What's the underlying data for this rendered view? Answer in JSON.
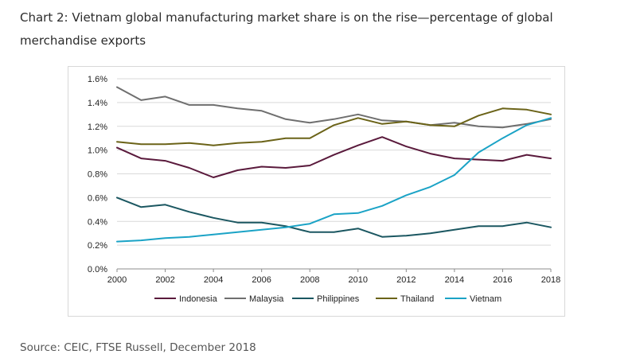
{
  "title": "Chart 2: Vietnam global manufacturing market share is on the rise—percentage of global merchandise exports",
  "source": "Source: CEIC, FTSE Russell, December 2018",
  "chart_data": {
    "type": "line",
    "title": "Chart 2: Vietnam global manufacturing market share is on the rise—percentage of global merchandise exports",
    "xlabel": "",
    "ylabel": "",
    "x": [
      2000,
      2001,
      2002,
      2003,
      2004,
      2005,
      2006,
      2007,
      2008,
      2009,
      2010,
      2011,
      2012,
      2013,
      2014,
      2015,
      2016,
      2017,
      2018
    ],
    "xlim": [
      2000,
      2018
    ],
    "ylim": [
      0,
      1.6
    ],
    "x_ticks": [
      2000,
      2002,
      2004,
      2006,
      2008,
      2010,
      2012,
      2014,
      2016,
      2018
    ],
    "x_tick_labels": [
      "2000",
      "2002",
      "2004",
      "2006",
      "2008",
      "2010",
      "2012",
      "2014",
      "2016",
      "2018"
    ],
    "y_ticks": [
      0,
      0.2,
      0.4,
      0.6,
      0.8,
      1.0,
      1.2,
      1.4,
      1.6
    ],
    "y_tick_labels": [
      "0.0%",
      "0.2%",
      "0.4%",
      "0.6%",
      "0.8%",
      "1.0%",
      "1.2%",
      "1.4%",
      "1.6%"
    ],
    "grid": "horizontal",
    "legend_position": "bottom",
    "series": [
      {
        "name": "Indonesia",
        "color": "#5a1a3c",
        "values": [
          1.02,
          0.93,
          0.91,
          0.85,
          0.77,
          0.83,
          0.86,
          0.85,
          0.87,
          0.96,
          1.04,
          1.11,
          1.03,
          0.97,
          0.93,
          0.92,
          0.91,
          0.96,
          0.93
        ]
      },
      {
        "name": "Malaysia",
        "color": "#6f6f6f",
        "values": [
          1.53,
          1.42,
          1.45,
          1.38,
          1.38,
          1.35,
          1.33,
          1.26,
          1.23,
          1.26,
          1.3,
          1.25,
          1.24,
          1.21,
          1.23,
          1.2,
          1.19,
          1.22,
          1.26
        ]
      },
      {
        "name": "Philippines",
        "color": "#1b5761",
        "values": [
          0.6,
          0.52,
          0.54,
          0.48,
          0.43,
          0.39,
          0.39,
          0.36,
          0.31,
          0.31,
          0.34,
          0.27,
          0.28,
          0.3,
          0.33,
          0.36,
          0.36,
          0.39,
          0.35
        ]
      },
      {
        "name": "Thailand",
        "color": "#6b6318",
        "values": [
          1.07,
          1.05,
          1.05,
          1.06,
          1.04,
          1.06,
          1.07,
          1.1,
          1.1,
          1.21,
          1.27,
          1.22,
          1.24,
          1.21,
          1.2,
          1.29,
          1.35,
          1.34,
          1.3
        ]
      },
      {
        "name": "Vietnam",
        "color": "#1ba3c6",
        "values": [
          0.23,
          0.24,
          0.26,
          0.27,
          0.29,
          0.31,
          0.33,
          0.35,
          0.38,
          0.46,
          0.47,
          0.53,
          0.62,
          0.69,
          0.79,
          0.98,
          1.1,
          1.21,
          1.27
        ]
      }
    ]
  }
}
